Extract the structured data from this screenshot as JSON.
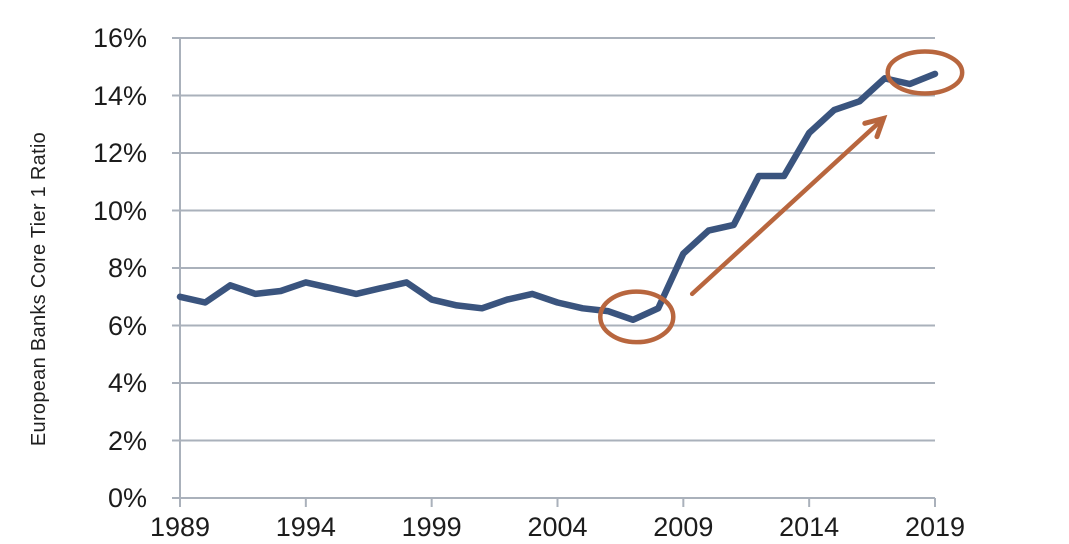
{
  "chart_data": {
    "type": "line",
    "title": "",
    "xlabel": "",
    "ylabel": "European Banks Core Tier 1 Ratio",
    "x": [
      1989,
      1990,
      1991,
      1992,
      1993,
      1994,
      1995,
      1996,
      1997,
      1998,
      1999,
      2000,
      2001,
      2002,
      2003,
      2004,
      2005,
      2006,
      2007,
      2008,
      2009,
      2010,
      2011,
      2012,
      2013,
      2014,
      2015,
      2016,
      2017,
      2018,
      2019
    ],
    "series": [
      {
        "name": "European Banks Core Tier 1 Ratio",
        "values": [
          7.0,
          6.8,
          7.4,
          7.1,
          7.2,
          7.5,
          7.3,
          7.1,
          7.3,
          7.5,
          6.9,
          6.7,
          6.6,
          6.9,
          7.1,
          6.8,
          6.6,
          6.5,
          6.2,
          6.6,
          8.5,
          9.3,
          9.5,
          11.2,
          11.2,
          12.7,
          13.5,
          13.8,
          14.6,
          14.4,
          14.75
        ]
      }
    ],
    "xlim": [
      1989,
      2019
    ],
    "ylim": [
      0,
      16
    ],
    "x_ticks": [
      "1989",
      "1994",
      "1999",
      "2004",
      "2009",
      "2014",
      "2019"
    ],
    "y_ticks": [
      "0%",
      "2%",
      "4%",
      "6%",
      "8%",
      "10%",
      "12%",
      "14%",
      "16%"
    ],
    "grid": "horizontal",
    "legend": "none",
    "colors": {
      "line": "#3A547E",
      "grid": "#AAB1BB",
      "axis": "#AAB1BB",
      "annotation": "#B8663E",
      "text": "#1c1c1c"
    },
    "annotations": [
      {
        "type": "ellipse",
        "name": "circle-2007-low",
        "x": 2007.15,
        "y": 6.3,
        "rx_x": 1.45,
        "ry_y": 0.88
      },
      {
        "type": "ellipse",
        "name": "circle-2019-high",
        "x": 2018.6,
        "y": 14.8,
        "rx_x": 1.48,
        "ry_y": 0.73
      },
      {
        "type": "arrow",
        "name": "rise-arrow",
        "x1": 2009.35,
        "y1": 7.1,
        "x2": 2016.95,
        "y2": 13.2
      }
    ]
  }
}
